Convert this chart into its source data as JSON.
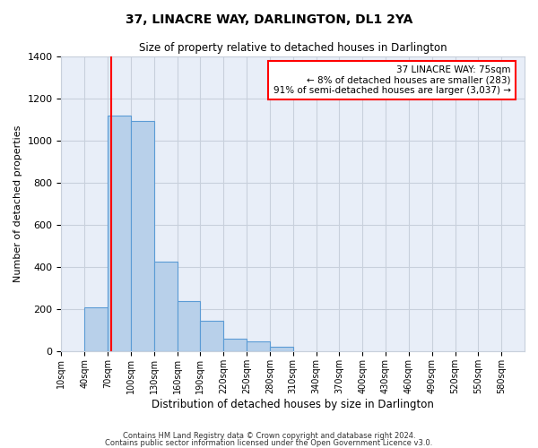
{
  "title": "37, LINACRE WAY, DARLINGTON, DL1 2YA",
  "subtitle": "Size of property relative to detached houses in Darlington",
  "xlabel": "Distribution of detached houses by size in Darlington",
  "ylabel": "Number of detached properties",
  "bar_color": "#b8d0ea",
  "bar_edge_color": "#5b9bd5",
  "background_color": "#e8eef8",
  "grid_color": "#c8d0dc",
  "red_line_x": 75,
  "bin_edges": [
    10,
    40,
    70,
    100,
    130,
    160,
    190,
    220,
    250,
    280,
    310,
    340,
    370,
    400,
    430,
    460,
    490,
    520,
    550,
    580,
    610
  ],
  "bar_heights": [
    0,
    210,
    1120,
    1095,
    425,
    240,
    145,
    60,
    48,
    20,
    0,
    0,
    0,
    0,
    0,
    0,
    0,
    0,
    0,
    0
  ],
  "ylim": [
    0,
    1400
  ],
  "yticks": [
    0,
    200,
    400,
    600,
    800,
    1000,
    1200,
    1400
  ],
  "annotation_text": "37 LINACRE WAY: 75sqm\n← 8% of detached houses are smaller (283)\n91% of semi-detached houses are larger (3,037) →",
  "footnote1": "Contains HM Land Registry data © Crown copyright and database right 2024.",
  "footnote2": "Contains public sector information licensed under the Open Government Licence v3.0."
}
